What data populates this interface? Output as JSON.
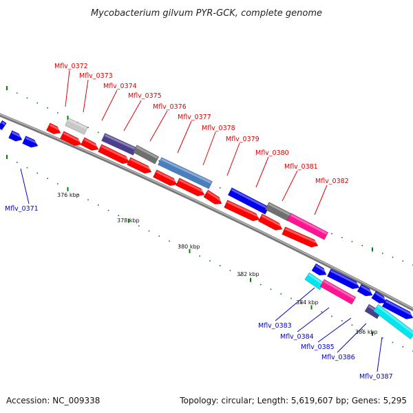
{
  "title": "Mycobacterium gilvum PYR-GCK, complete genome",
  "accession": "Accession: NC_009338",
  "topology": "Topology: circular; Length: 5,619,607 bp; Genes: 5,295",
  "ticks": [
    "376 kbp",
    "378 kbp",
    "380 kbp",
    "382 kbp",
    "384 kbp",
    "386 kbp"
  ],
  "labels_top": [
    "Mflv_0372",
    "Mflv_0373",
    "Mflv_0374",
    "Mflv_0375",
    "Mflv_0376",
    "Mflv_0377",
    "Mflv_0378",
    "Mflv_0379",
    "Mflv_0380",
    "Mflv_0381",
    "Mflv_0382"
  ],
  "labels_bottom": [
    "Mflv_0371",
    "Mflv_0383",
    "Mflv_0384",
    "Mflv_0385",
    "Mflv_0386",
    "Mflv_0387"
  ],
  "colors": {
    "forward_red": "#ff0000",
    "reverse_blue": "#0000ee",
    "navy": "#4a3f8c",
    "gray": "#6f6f6f",
    "light_gray": "#c8c8c8",
    "steel_blue": "#4a7fbf",
    "magenta": "#ff1493",
    "cyan": "#00e5ee",
    "backbone": "#888888",
    "dots": "#008000"
  }
}
